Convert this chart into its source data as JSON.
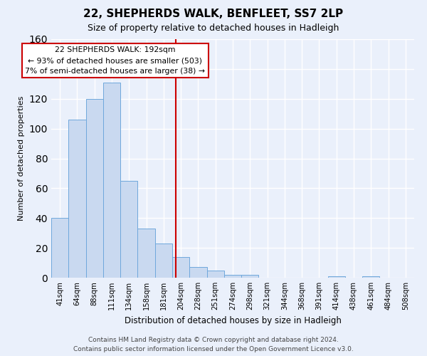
{
  "title": "22, SHEPHERDS WALK, BENFLEET, SS7 2LP",
  "subtitle": "Size of property relative to detached houses in Hadleigh",
  "xlabel": "Distribution of detached houses by size in Hadleigh",
  "ylabel": "Number of detached properties",
  "bar_labels": [
    "41sqm",
    "64sqm",
    "88sqm",
    "111sqm",
    "134sqm",
    "158sqm",
    "181sqm",
    "204sqm",
    "228sqm",
    "251sqm",
    "274sqm",
    "298sqm",
    "321sqm",
    "344sqm",
    "368sqm",
    "391sqm",
    "414sqm",
    "438sqm",
    "461sqm",
    "484sqm",
    "508sqm"
  ],
  "bar_values": [
    40,
    106,
    120,
    131,
    65,
    33,
    23,
    14,
    7,
    5,
    2,
    2,
    0,
    0,
    0,
    0,
    1,
    0,
    1,
    0,
    0
  ],
  "bar_color": "#c9d9f0",
  "bar_edgecolor": "#6fa8dc",
  "ylim": [
    0,
    160
  ],
  "yticks": [
    0,
    20,
    40,
    60,
    80,
    100,
    120,
    140,
    160
  ],
  "vline_x": 6.72,
  "annotation_title": "22 SHEPHERDS WALK: 192sqm",
  "annotation_line1": "← 93% of detached houses are smaller (503)",
  "annotation_line2": "7% of semi-detached houses are larger (38) →",
  "vline_color": "#cc0000",
  "annotation_box_facecolor": "#ffffff",
  "annotation_box_edgecolor": "#cc0000",
  "footer_line1": "Contains HM Land Registry data © Crown copyright and database right 2024.",
  "footer_line2": "Contains public sector information licensed under the Open Government Licence v3.0.",
  "background_color": "#eaf0fb",
  "grid_color": "#ffffff"
}
